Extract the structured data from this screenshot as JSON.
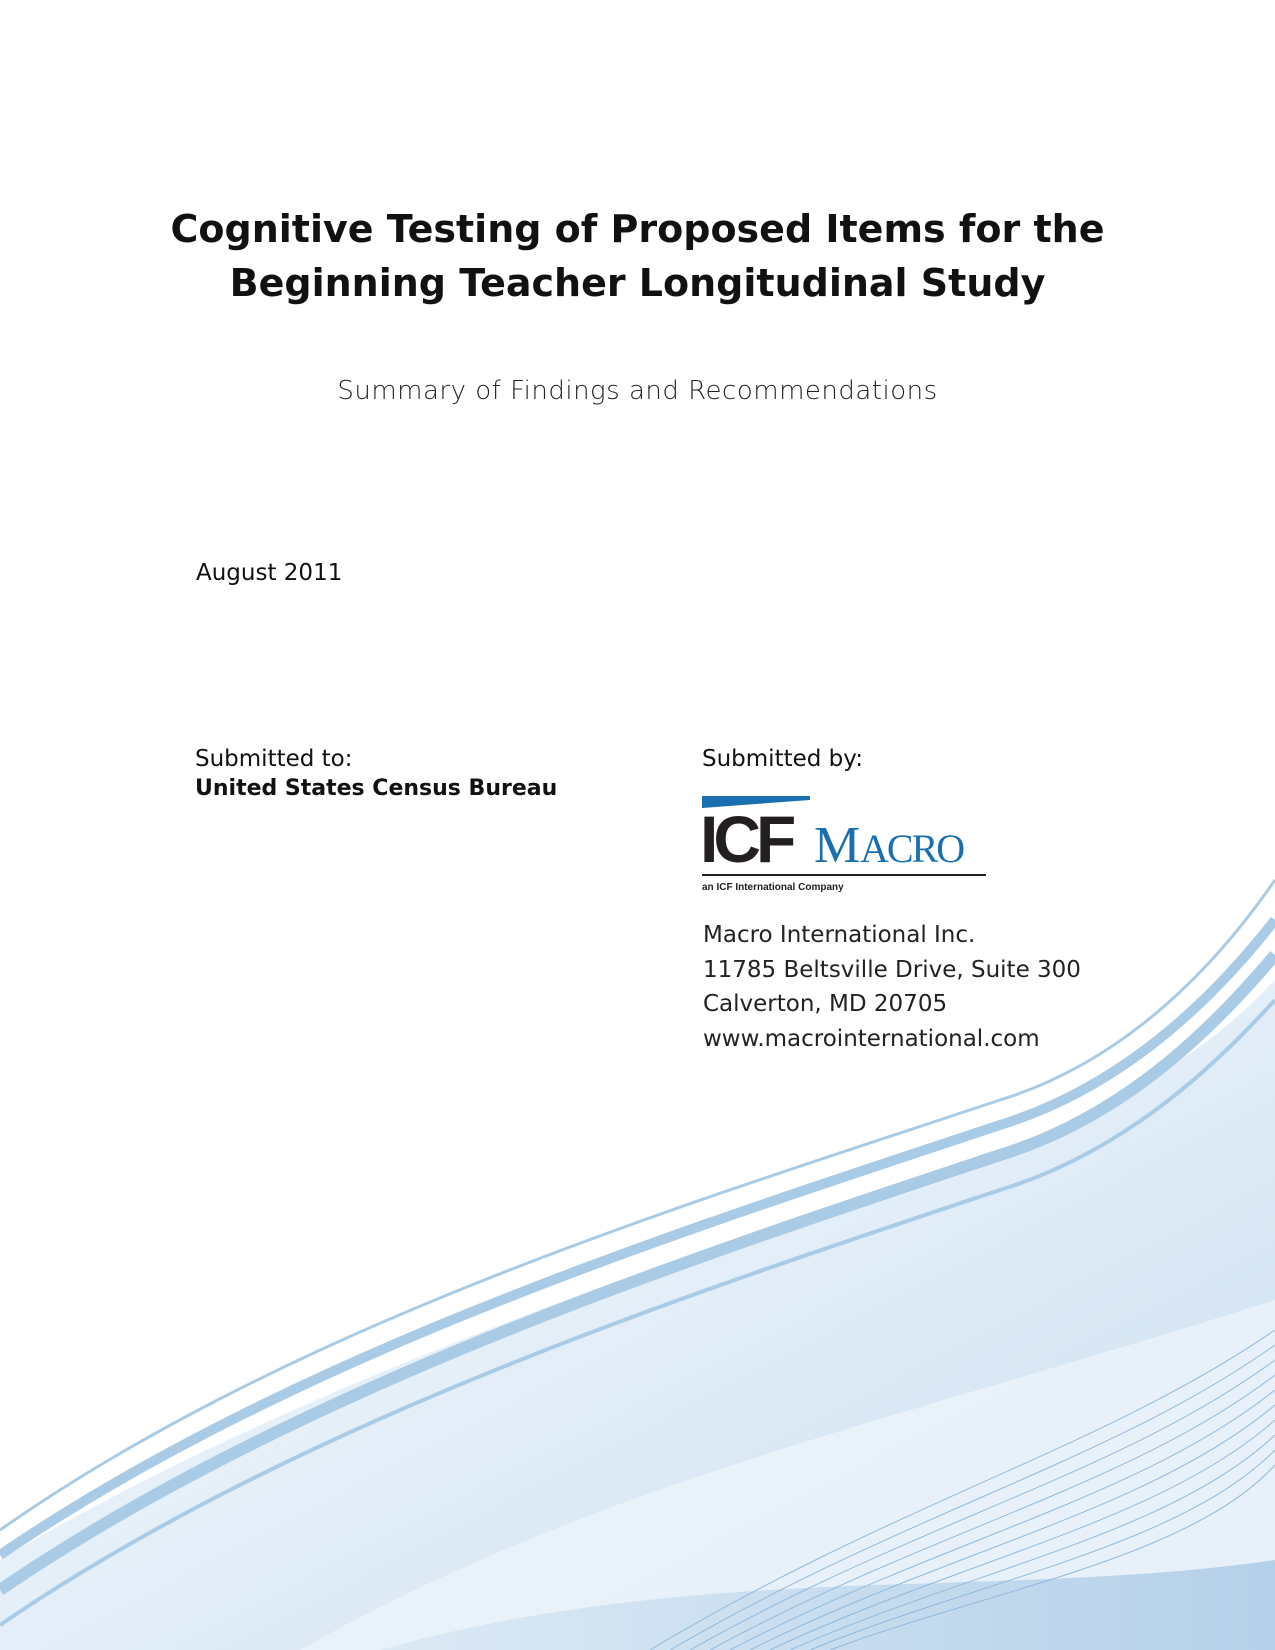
{
  "title": {
    "line1": "Cognitive Testing of Proposed Items for the",
    "line2": "Beginning Teacher Longitudinal Study"
  },
  "subtitle": "Summary of Findings and Recommendations",
  "date": "August 2011",
  "submitted_to": {
    "label": "Submitted to:",
    "org": "United States Census Bureau"
  },
  "submitted_by": {
    "label": "Submitted by:",
    "logo": {
      "text_icf": "ICF",
      "text_macro": "MACRO",
      "tagline": "an ICF International Company",
      "colors": {
        "black": "#231f20",
        "blue": "#1a6fb0"
      }
    },
    "address": [
      "Macro International Inc.",
      "11785 Beltsville Drive, Suite 300",
      "Calverton, MD 20705",
      "www.macrointernational.com"
    ]
  },
  "colors": {
    "wave_light": "#e4eef7",
    "wave_mid": "#a9cbe6",
    "wave_dark": "#7fb0d8"
  }
}
